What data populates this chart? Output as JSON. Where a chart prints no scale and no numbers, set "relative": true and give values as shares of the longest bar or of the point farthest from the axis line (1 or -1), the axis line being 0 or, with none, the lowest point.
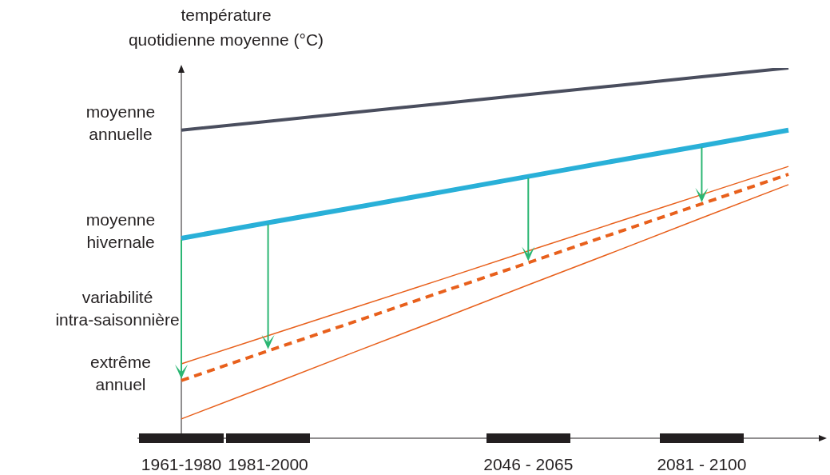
{
  "chart_data": {
    "type": "line",
    "relative": true,
    "ylabel": "température quotidienne moyenne (°C)",
    "categories": [
      "1961-1980",
      "1981-2000",
      null,
      null,
      "2046 - 2065",
      null,
      "2081 - 2100",
      null
    ],
    "series": [
      {
        "name": "moyenne annuelle",
        "color": "#4a4e5e",
        "values": [
          0.832,
          0.856,
          0.88,
          0.904,
          0.928,
          0.952,
          0.976,
          1
        ]
      },
      {
        "name": "moyenne hivernale",
        "color": "#29b0d8",
        "values": [
          0.54,
          0.582,
          0.623,
          0.665,
          0.707,
          0.749,
          0.79,
          0.832
        ]
      },
      {
        "name": "extrême annuel",
        "color": "#e8601c",
        "line_style": "dashed",
        "values": [
          0.156,
          0.236,
          0.315,
          0.395,
          0.474,
          0.554,
          0.633,
          0.713
        ]
      },
      {
        "color": "#e8601c",
        "values": [
          0.201,
          0.277,
          0.353,
          0.429,
          0.506,
          0.582,
          0.658,
          0.734
        ]
      },
      {
        "color": "#e8601c",
        "values": [
          0.052,
          0.142,
          0.233,
          0.323,
          0.414,
          0.504,
          0.595,
          0.685
        ]
      }
    ],
    "annotations": [
      "variabilité intra-saisonnière"
    ]
  }
}
